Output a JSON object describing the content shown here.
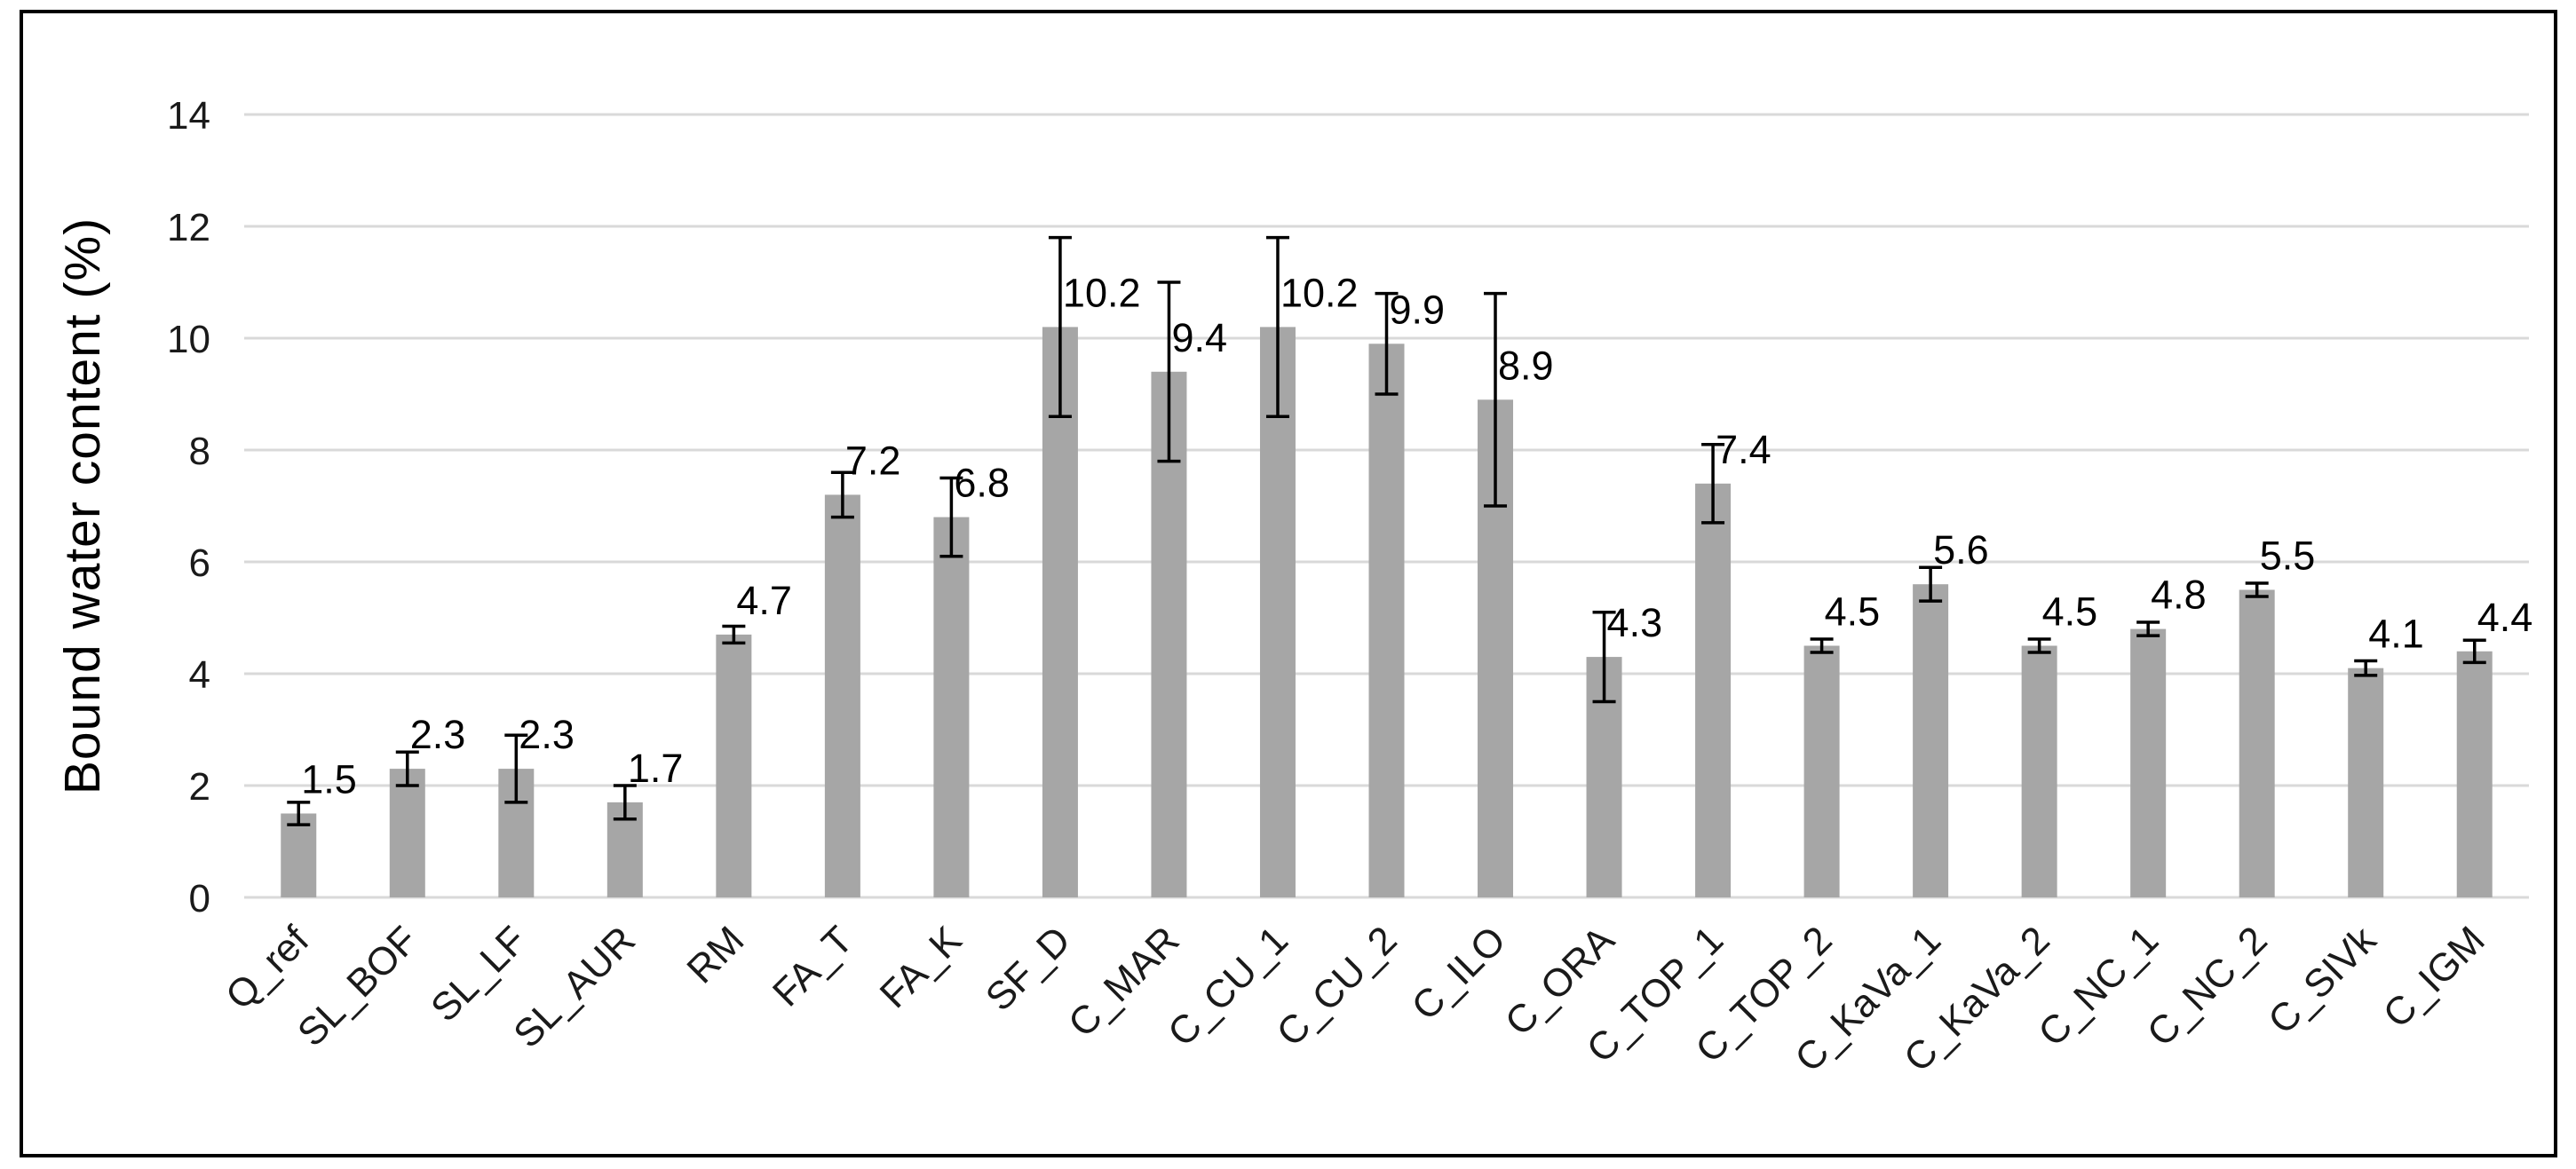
{
  "figure": {
    "background": "#ffffff",
    "border_color": "#000000"
  },
  "chart_data": {
    "type": "bar",
    "title": "",
    "xlabel": "",
    "ylabel": "Bound water content (%)",
    "categories": [
      "Q_ref",
      "SL_BOF",
      "SL_LF",
      "SL_AUR",
      "RM",
      "FA_T",
      "FA_K",
      "SF_D",
      "C_MAR",
      "C_CU_1",
      "C_CU_2",
      "C_ILO",
      "C_ORA",
      "C_TOP_1",
      "C_TOP_2",
      "C_KaVa_1",
      "C_KaVa_2",
      "C_NC_1",
      "C_NC_2",
      "C_SIVk",
      "C_IGM"
    ],
    "values": [
      1.5,
      2.3,
      2.3,
      1.7,
      4.7,
      7.2,
      6.8,
      10.2,
      9.4,
      10.2,
      9.9,
      8.9,
      4.3,
      7.4,
      4.5,
      5.6,
      4.5,
      4.8,
      5.5,
      4.1,
      4.4
    ],
    "errors": [
      0.2,
      0.3,
      0.6,
      0.3,
      0.15,
      0.4,
      0.7,
      1.6,
      1.6,
      1.6,
      0.9,
      1.9,
      0.8,
      0.7,
      0.12,
      0.3,
      0.12,
      0.12,
      0.12,
      0.13,
      0.2
    ],
    "value_labels": [
      "1.5",
      "2.3",
      "2.3",
      "1.7",
      "4.7",
      "7.2",
      "6.8",
      "10.2",
      "9.4",
      "10.2",
      "9.9",
      "8.9",
      "4.3",
      "7.4",
      "4.5",
      "5.6",
      "4.5",
      "4.8",
      "5.5",
      "4.1",
      "4.4"
    ],
    "ylim": [
      0,
      14
    ],
    "yticks": [
      0,
      2,
      4,
      6,
      8,
      10,
      12,
      14
    ],
    "grid": true,
    "legend": "none",
    "bar_color": "#a6a6a6",
    "gridline_color": "#d9d9d9",
    "error_bar_color": "#000000",
    "x_label_rotation_deg": -45
  }
}
